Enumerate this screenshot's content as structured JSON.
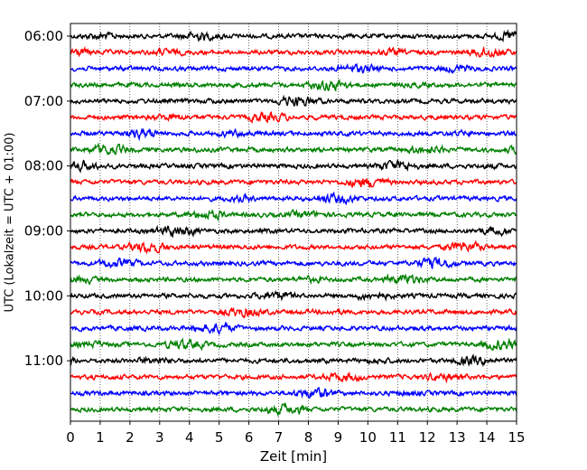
{
  "chart_data": {
    "type": "line",
    "title": "",
    "xlabel": "Zeit  [min]",
    "ylabel": "UTC (Lokalzeit = UTC + 01:00)",
    "xlim": [
      0,
      15
    ],
    "x_ticks": [
      "0",
      "1",
      "2",
      "3",
      "4",
      "5",
      "6",
      "7",
      "8",
      "9",
      "10",
      "11",
      "12",
      "13",
      "14",
      "15"
    ],
    "y_ticks": [
      "06:00",
      "07:00",
      "08:00",
      "09:00",
      "10:00",
      "11:00"
    ],
    "grid": "vertical dotted lines at each minute",
    "trace_interval_minutes": 15,
    "first_trace_time": "06:00",
    "last_trace_time": "11:45",
    "trace_count": 24,
    "color_cycle": [
      "#000000",
      "#ff0000",
      "#0000ff",
      "#008000"
    ],
    "series_description": "helicorder seismogram: one noisy trace per 15 minutes, colors cycle black, red, blue, green"
  }
}
